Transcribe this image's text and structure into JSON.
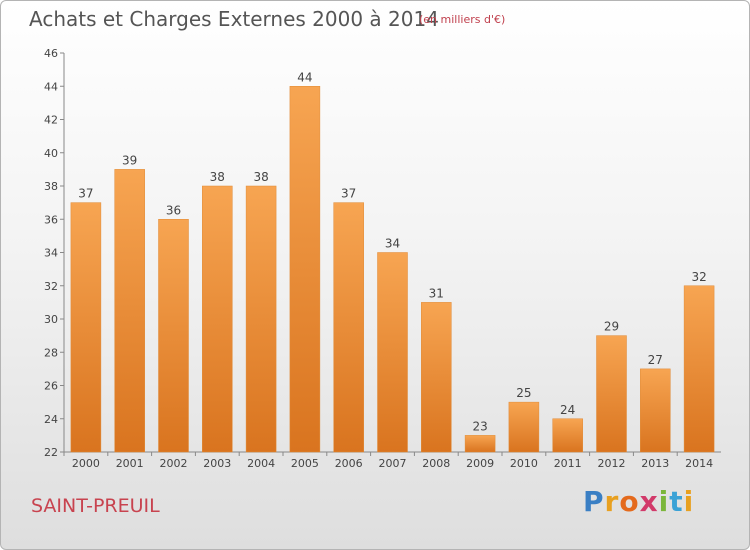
{
  "title": "Achats et Charges Externes 2000 à 2014",
  "unit_note": "(en milliers d'€)",
  "commune": "SAINT-PREUIL",
  "logo": {
    "text": "Proxiti",
    "letters": [
      {
        "ch": "P",
        "color": "#3a7fc4"
      },
      {
        "ch": "r",
        "color": "#e8a020"
      },
      {
        "ch": "o",
        "color": "#e46a1c"
      },
      {
        "ch": "x",
        "color": "#d23a6a"
      },
      {
        "ch": "i",
        "color": "#7bb63a"
      },
      {
        "ch": "t",
        "color": "#3aa2d6"
      },
      {
        "ch": "i",
        "color": "#e8a020"
      }
    ]
  },
  "chart_data": {
    "type": "bar",
    "categories": [
      "2000",
      "2001",
      "2002",
      "2003",
      "2004",
      "2005",
      "2006",
      "2007",
      "2008",
      "2009",
      "2010",
      "2011",
      "2012",
      "2013",
      "2014"
    ],
    "values": [
      37,
      39,
      36,
      38,
      38,
      44,
      37,
      34,
      31,
      23,
      25,
      24,
      29,
      27,
      32
    ],
    "title": "Achats et Charges Externes 2000 à 2014",
    "subtitle": "(en milliers d'€)",
    "xlabel": "",
    "ylabel": "",
    "ylim": [
      22,
      46
    ],
    "yticks": [
      22,
      24,
      26,
      28,
      30,
      32,
      34,
      36,
      38,
      40,
      42,
      44,
      46
    ],
    "grid": false,
    "bar_color_light": "#f7a552",
    "bar_color_dark": "#d9741f"
  }
}
